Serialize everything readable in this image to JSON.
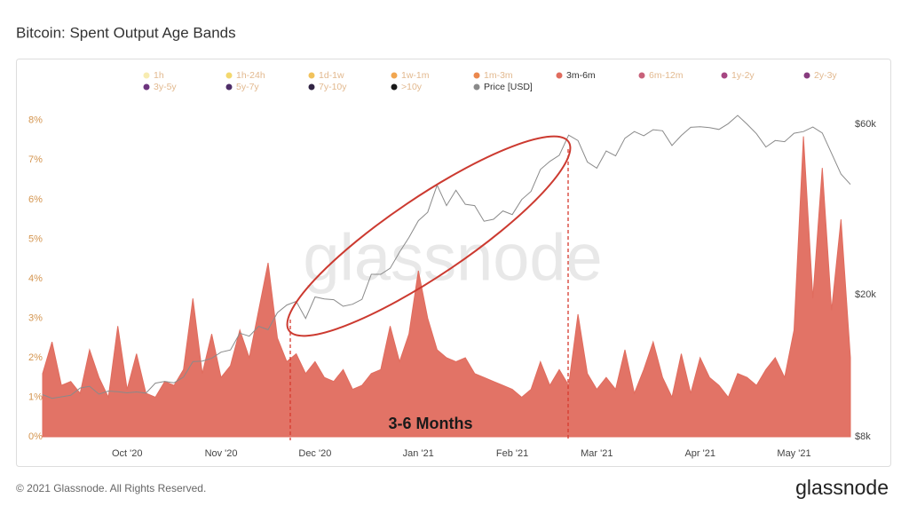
{
  "chart_data": {
    "type": "area",
    "title": "Bitcoin: Spent Output Age Bands",
    "watermark": "glassnode",
    "annotation": "3-6 Months",
    "footer": "© 2021 Glassnode. All Rights Reserved.",
    "brand": "glassnode",
    "categories": [
      null,
      null,
      null,
      null,
      null,
      null,
      null,
      null,
      null,
      "Oct '20",
      null,
      null,
      null,
      null,
      null,
      null,
      null,
      null,
      null,
      "Nov '20",
      null,
      null,
      null,
      null,
      null,
      null,
      null,
      null,
      null,
      "Dec '20",
      null,
      null,
      null,
      null,
      null,
      null,
      null,
      null,
      null,
      null,
      "Jan '21",
      null,
      null,
      null,
      null,
      null,
      null,
      null,
      null,
      null,
      "Feb '21",
      null,
      null,
      null,
      null,
      null,
      null,
      null,
      null,
      "Mar '21",
      null,
      null,
      null,
      null,
      null,
      null,
      null,
      null,
      null,
      null,
      "Apr '21",
      null,
      null,
      null,
      null,
      null,
      null,
      null,
      null,
      null,
      "May '21",
      null,
      null,
      null,
      null,
      null,
      null
    ],
    "series": [
      {
        "name": "1h",
        "color": "#f6eaa8"
      },
      {
        "name": "1h-24h",
        "color": "#f2d45e"
      },
      {
        "name": "1d-1w",
        "color": "#efbb4a"
      },
      {
        "name": "1w-1m",
        "color": "#ef9c3d"
      },
      {
        "name": "1m-3m",
        "color": "#e97b3a"
      },
      {
        "name": "3m-6m",
        "color": "#e06c5e",
        "values": [
          1.6,
          2.4,
          1.3,
          1.4,
          1.1,
          2.2,
          1.5,
          1.0,
          2.8,
          1.2,
          2.1,
          1.1,
          1.0,
          1.4,
          1.3,
          1.7,
          3.5,
          1.6,
          2.6,
          1.5,
          1.8,
          2.7,
          2.0,
          3.2,
          4.4,
          2.5,
          1.9,
          2.1,
          1.6,
          1.9,
          1.5,
          1.4,
          1.7,
          1.2,
          1.3,
          1.6,
          1.7,
          2.8,
          1.9,
          2.6,
          4.2,
          3.0,
          2.2,
          2.0,
          1.9,
          2.0,
          1.6,
          1.5,
          1.4,
          1.3,
          1.2,
          1.0,
          1.2,
          1.9,
          1.3,
          1.7,
          1.3,
          3.1,
          1.6,
          1.2,
          1.5,
          1.2,
          2.2,
          1.1,
          1.7,
          2.4,
          1.5,
          1.0,
          2.1,
          1.1,
          2.0,
          1.5,
          1.3,
          1.0,
          1.6,
          1.5,
          1.3,
          1.7,
          2.0,
          1.5,
          2.7,
          7.6,
          3.5,
          6.8,
          3.2,
          5.5,
          2.0
        ]
      },
      {
        "name": "6m-12m",
        "color": "#c2506c"
      },
      {
        "name": "1y-2y",
        "color": "#9c3274"
      },
      {
        "name": "2y-3y",
        "color": "#7a2670"
      },
      {
        "name": "3y-5y",
        "color": "#5d1f70"
      },
      {
        "name": "5y-7y",
        "color": "#3b1758"
      },
      {
        "name": "7y-10y",
        "color": "#1b0c30"
      },
      {
        "name": ">10y",
        "color": "#000000"
      },
      {
        "name": "Price [USD]",
        "color": "#8a8a8a",
        "type": "line",
        "axis": "y2",
        "values": [
          10500,
          10250,
          10350,
          10450,
          10950,
          11080,
          10530,
          10740,
          10700,
          10620,
          10680,
          10600,
          11300,
          11430,
          11330,
          11750,
          12980,
          13030,
          13270,
          13800,
          14000,
          15600,
          15300,
          16300,
          15950,
          17800,
          18700,
          19150,
          17150,
          19700,
          19450,
          19350,
          18550,
          18800,
          19400,
          22800,
          22800,
          23700,
          26300,
          28900,
          32200,
          34000,
          40500,
          35500,
          39200,
          35800,
          35500,
          32100,
          32500,
          34300,
          33500,
          36900,
          38900,
          44800,
          47200,
          49100,
          55900,
          54000,
          47000,
          45200,
          50500,
          48900,
          54800,
          57200,
          55700,
          57900,
          57500,
          52300,
          55800,
          58800,
          59000,
          58700,
          58000,
          60200,
          63500,
          60000,
          56400,
          51800,
          54000,
          53600,
          56600,
          57200,
          58900,
          56700,
          49700,
          43500,
          40700
        ]
      }
    ],
    "ylim": [
      0,
      8.4
    ],
    "yticks": [
      {
        "value": 0,
        "label": "0%"
      },
      {
        "value": 1,
        "label": "1%"
      },
      {
        "value": 2,
        "label": "2%"
      },
      {
        "value": 3,
        "label": "3%"
      },
      {
        "value": 4,
        "label": "4%"
      },
      {
        "value": 5,
        "label": "5%"
      },
      {
        "value": 6,
        "label": "6%"
      },
      {
        "value": 7,
        "label": "7%"
      },
      {
        "value": 8,
        "label": "8%"
      }
    ],
    "y2lim": [
      8000,
      68000
    ],
    "y2scale": "log",
    "y2ticks": [
      {
        "value": 8000,
        "label": "$8k"
      },
      {
        "value": 20000,
        "label": "$20k"
      },
      {
        "value": 60000,
        "label": "$60k"
      }
    ],
    "grid": false
  }
}
